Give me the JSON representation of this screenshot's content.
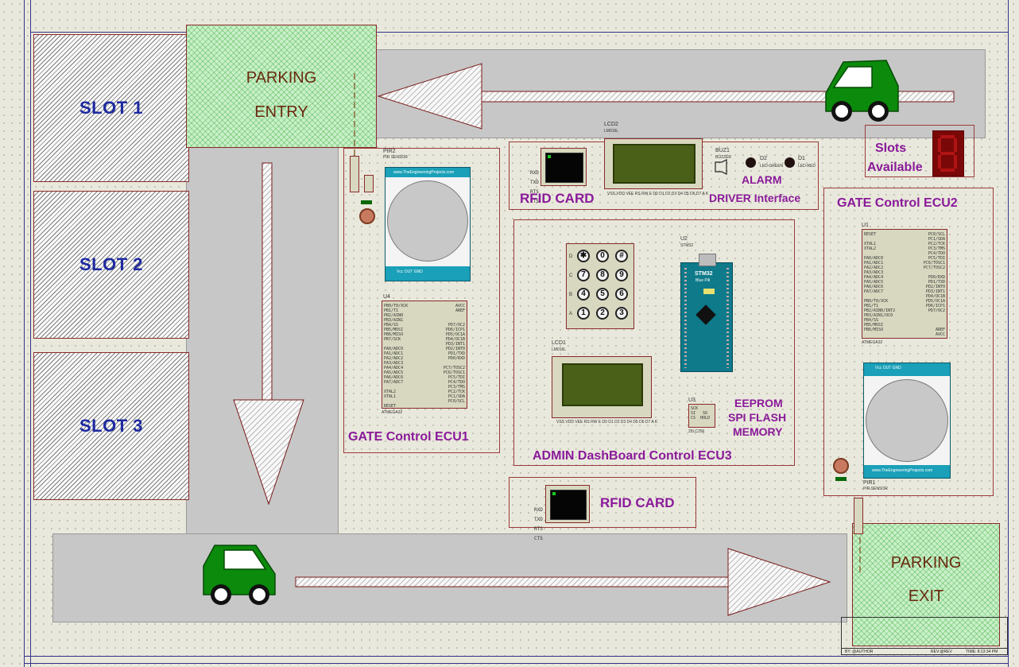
{
  "slots": [
    {
      "label": "SLOT 1"
    },
    {
      "label": "SLOT 2"
    },
    {
      "label": "SLOT 3"
    }
  ],
  "entry": {
    "line1": "PARKING",
    "line2": "ENTRY"
  },
  "exit": {
    "line1": "PARKING",
    "line2": "EXIT"
  },
  "slots_available": {
    "line1": "Slots",
    "line2": "Available"
  },
  "labels": {
    "rfid_card_top": "RFID CARD",
    "rfid_card_bottom": "RFID CARD",
    "alarm": "ALARM",
    "driver_interface": "DRIVER Interface",
    "gate_ecu1": "GATE Control ECU1",
    "gate_ecu2": "GATE Control ECU2",
    "admin_ecu3": "ADMIN DashBoard Control ECU3",
    "eeprom_1": "EEPROM",
    "eeprom_2": "SPI FLASH",
    "eeprom_3": "MEMORY"
  },
  "components": {
    "pir2": "PIR2",
    "pir2_sub": "PIR SENSOR",
    "pir1": "PIR1",
    "pir1_sub": "PIR SENSOR",
    "sensor_site": "www.TheEngineeringProjects.com",
    "sensor_pins": "Vcc OUT GND",
    "lcd2": "LCD2",
    "lcd2_sub": "LM016L",
    "lcd1": "LCD1",
    "lcd1_sub": "LM016L",
    "buz1": "BUZ1",
    "buz1_sub": "BUZZER",
    "d2": "D2",
    "d2_sub": "LED-GREEN",
    "d1": "D1",
    "d1_sub": "LED-RED",
    "u2": "U2",
    "u2_sub": "STM32",
    "stm_title": "STM32",
    "stm_sub": "Blue Pill",
    "u1": "U1",
    "u1_sub": "ATMEGA32",
    "u4": "U4",
    "u4_sub": "ATMEGA32",
    "u3": "U3",
    "u3_sub": "25LC256",
    "eeprom_pins": "SCK\nSI   SO\nCS  HOLD",
    "rfid_pins": [
      "RXD",
      "TXD",
      "RTS",
      "CTS"
    ]
  },
  "keypad": {
    "rows": [
      {
        "row": "D",
        "keys": [
          "✱",
          "0",
          "#"
        ]
      },
      {
        "row": "C",
        "keys": [
          "7",
          "8",
          "9"
        ]
      },
      {
        "row": "B",
        "keys": [
          "4",
          "5",
          "6"
        ]
      },
      {
        "row": "A",
        "keys": [
          "1",
          "2",
          "3"
        ]
      }
    ]
  },
  "title_block": {
    "by": "BY:  @AUTHOR",
    "rev": "REV:@REV",
    "time": "TIME:  8:13:34 PM"
  },
  "colors": {
    "road": "#c7c7c7",
    "zone_green": "#c9f0c9",
    "slot_text": "#1e2aa0",
    "annotation_purple": "#8a1a9a",
    "car_green": "#0b8a0b",
    "seven_seg": "#9a0c0c"
  }
}
